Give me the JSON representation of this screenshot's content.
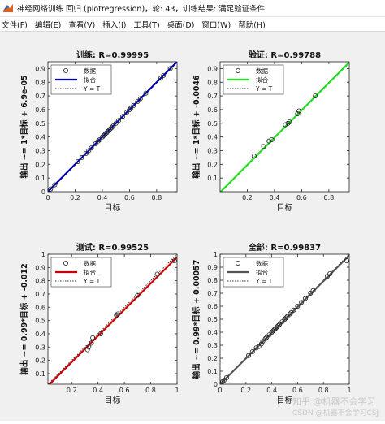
{
  "window": {
    "title": "神经网络训练 回归 (plotregression)，轮: 43，训练结果: 满足验证条件",
    "icon": "matlab-icon"
  },
  "menu": [
    "文件(F)",
    "编辑(E)",
    "查看(V)",
    "插入(I)",
    "工具(T)",
    "桌面(D)",
    "窗口(W)",
    "帮助(H)"
  ],
  "watermark": {
    "line1": "知乎 @机器不会学习",
    "line2": "CSDN @机器不会学习CSJ"
  },
  "legend_labels": {
    "data": "数据",
    "fit": "拟合",
    "identity": "Y = T"
  },
  "chart_data": [
    {
      "type": "scatter",
      "title": "训练: R=0.99995",
      "xlabel": "目标",
      "ylabel": "输出 ~= 1*目标 + 6.9e-05",
      "xlim": [
        0,
        0.95
      ],
      "ylim": [
        0,
        0.95
      ],
      "xticks": [
        0,
        0.2,
        0.4,
        0.6,
        0.8
      ],
      "yticks": [
        0,
        0.1,
        0.2,
        0.3,
        0.4,
        0.5,
        0.6,
        0.7,
        0.8,
        0.9
      ],
      "fit_color": "#0000aa",
      "fit": {
        "slope": 1,
        "intercept": 6.9e-05
      },
      "legend_position": "top-left",
      "grid": false,
      "points": {
        "x": [
          0.02,
          0.05,
          0.22,
          0.25,
          0.28,
          0.3,
          0.32,
          0.35,
          0.37,
          0.38,
          0.4,
          0.41,
          0.42,
          0.43,
          0.44,
          0.45,
          0.46,
          0.47,
          0.48,
          0.5,
          0.52,
          0.55,
          0.58,
          0.6,
          0.61,
          0.63,
          0.66,
          0.68,
          0.72,
          0.83,
          0.85,
          0.9
        ],
        "y": [
          0.02,
          0.05,
          0.22,
          0.25,
          0.28,
          0.3,
          0.32,
          0.35,
          0.37,
          0.38,
          0.4,
          0.41,
          0.42,
          0.43,
          0.44,
          0.45,
          0.46,
          0.47,
          0.48,
          0.5,
          0.52,
          0.55,
          0.58,
          0.6,
          0.61,
          0.63,
          0.66,
          0.68,
          0.72,
          0.83,
          0.85,
          0.9
        ]
      }
    },
    {
      "type": "scatter",
      "title": "验证: R=0.99788",
      "xlabel": "目标",
      "ylabel": "输出 ~= 1*目标 + -0.0046",
      "xlim": [
        0,
        0.95
      ],
      "ylim": [
        0,
        0.95
      ],
      "xticks": [
        0.2,
        0.4,
        0.6,
        0.8
      ],
      "yticks": [
        0.1,
        0.2,
        0.3,
        0.4,
        0.5,
        0.6,
        0.7,
        0.8,
        0.9
      ],
      "fit_color": "#22dd22",
      "fit": {
        "slope": 1,
        "intercept": -0.0046
      },
      "legend_position": "top-left",
      "grid": false,
      "points": {
        "x": [
          0.25,
          0.32,
          0.36,
          0.38,
          0.48,
          0.5,
          0.51,
          0.57,
          0.58,
          0.7
        ],
        "y": [
          0.26,
          0.33,
          0.37,
          0.38,
          0.49,
          0.5,
          0.51,
          0.57,
          0.59,
          0.7
        ]
      }
    },
    {
      "type": "scatter",
      "title": "测试: R=0.99525",
      "xlabel": "目标",
      "ylabel": "输出 ~= 0.99*目标 + -0.012",
      "xlim": [
        0.02,
        1
      ],
      "ylim": [
        0.02,
        1
      ],
      "xticks": [
        0.2,
        0.4,
        0.6,
        0.8,
        1
      ],
      "yticks": [
        0.1,
        0.2,
        0.3,
        0.4,
        0.5,
        0.6,
        0.7,
        0.8,
        0.9,
        1
      ],
      "fit_color": "#cc0000",
      "fit": {
        "slope": 0.99,
        "intercept": -0.012
      },
      "legend_position": "top-left",
      "grid": false,
      "points": {
        "x": [
          0.32,
          0.33,
          0.35,
          0.36,
          0.42,
          0.54,
          0.55,
          0.7,
          0.85,
          0.98
        ],
        "y": [
          0.28,
          0.3,
          0.33,
          0.37,
          0.4,
          0.54,
          0.55,
          0.69,
          0.85,
          0.95
        ]
      }
    },
    {
      "type": "scatter",
      "title": "全部: R=0.99837",
      "xlabel": "目标",
      "ylabel": "输出 ~= 0.99*目标 + 0.00057",
      "xlim": [
        0,
        1
      ],
      "ylim": [
        0,
        1
      ],
      "xticks": [
        0,
        0.2,
        0.4,
        0.6,
        0.8,
        1
      ],
      "yticks": [
        0,
        0.1,
        0.2,
        0.3,
        0.4,
        0.5,
        0.6,
        0.7,
        0.8,
        0.9,
        1
      ],
      "fit_color": "#555555",
      "fit": {
        "slope": 0.99,
        "intercept": 0.00057
      },
      "legend_position": "top-left",
      "grid": false,
      "points": {
        "x": [
          0.02,
          0.03,
          0.05,
          0.22,
          0.25,
          0.28,
          0.3,
          0.32,
          0.33,
          0.35,
          0.36,
          0.38,
          0.4,
          0.41,
          0.42,
          0.43,
          0.44,
          0.45,
          0.46,
          0.48,
          0.5,
          0.51,
          0.52,
          0.54,
          0.55,
          0.57,
          0.6,
          0.63,
          0.66,
          0.7,
          0.72,
          0.83,
          0.85,
          0.98
        ],
        "y": [
          0.02,
          0.03,
          0.05,
          0.22,
          0.25,
          0.28,
          0.29,
          0.31,
          0.33,
          0.35,
          0.36,
          0.38,
          0.4,
          0.41,
          0.42,
          0.43,
          0.44,
          0.45,
          0.46,
          0.48,
          0.5,
          0.51,
          0.52,
          0.54,
          0.55,
          0.57,
          0.6,
          0.63,
          0.66,
          0.7,
          0.72,
          0.83,
          0.85,
          0.95
        ]
      }
    }
  ]
}
